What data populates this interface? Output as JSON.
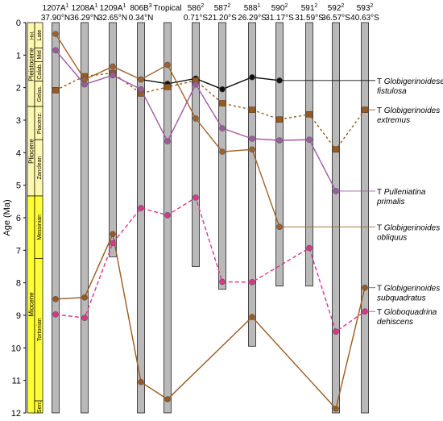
{
  "chart_data": {
    "type": "line",
    "xlabel": "",
    "ylabel": "Age (Ma)",
    "ylim": [
      0,
      12
    ],
    "yticks": [
      "0",
      "1",
      "2",
      "3",
      "4",
      "5",
      "6",
      "7",
      "8",
      "9",
      "10",
      "11",
      "12"
    ],
    "sites": [
      {
        "name": "1207A",
        "sup": "1",
        "lat": "37.90°N",
        "bottom": 12
      },
      {
        "name": "1208A",
        "sup": "1",
        "lat": "36.29°N",
        "bottom": 12
      },
      {
        "name": "1209A",
        "sup": "1",
        "lat": "32.65°N",
        "bottom": 7.2
      },
      {
        "name": "806B",
        "sup": "3",
        "lat": "0.34°N",
        "bottom": 12
      },
      {
        "name": "Tropical",
        "sup": "",
        "lat": "",
        "bottom": 12
      },
      {
        "name": "586",
        "sup": "2",
        "lat": "0.71°S",
        "bottom": 7.5
      },
      {
        "name": "587",
        "sup": "2",
        "lat": "21.20°S",
        "bottom": 8.2
      },
      {
        "name": "588",
        "sup": "1",
        "lat": "26.29°S",
        "bottom": 9.95
      },
      {
        "name": "590",
        "sup": "2",
        "lat": "31.17°S",
        "bottom": 8.1
      },
      {
        "name": "591",
        "sup": "2",
        "lat": "31.59°S",
        "bottom": 8.1
      },
      {
        "name": "592",
        "sup": "2",
        "lat": "36.57°S",
        "bottom": 12
      },
      {
        "name": "593",
        "sup": "2",
        "lat": "40.63°S",
        "bottom": 12
      }
    ],
    "stratigraphy": {
      "epochs": [
        {
          "label": "Pleistocene",
          "from": 0,
          "to": 2.58
        },
        {
          "label": "Pliocene",
          "from": 2.58,
          "to": 5.33
        },
        {
          "label": "Miocene",
          "from": 5.33,
          "to": 12
        }
      ],
      "stages": [
        {
          "label": "Late",
          "from": 0,
          "to": 0.78
        },
        {
          "label": "Mid",
          "from": 0.78,
          "to": 1.2
        },
        {
          "label": "Calab.",
          "from": 1.2,
          "to": 1.8
        },
        {
          "label": "Gelas.",
          "from": 1.8,
          "to": 2.58
        },
        {
          "label": "Piacenz.",
          "from": 2.58,
          "to": 3.6
        },
        {
          "label": "Zanclean",
          "from": 3.6,
          "to": 5.33
        },
        {
          "label": "Messinian",
          "from": 5.33,
          "to": 7.25
        },
        {
          "label": "Tortonian",
          "from": 7.25,
          "to": 11.63
        },
        {
          "label": "Serr.",
          "from": 11.63,
          "to": 12
        }
      ],
      "holocene_label": "Hol."
    },
    "series": [
      {
        "name": "T Globigerinoidesella fistulosa",
        "color": "#111111",
        "style": "solid",
        "marker": "circle",
        "points": [
          [
            3,
            1.75
          ],
          [
            4,
            1.88
          ],
          [
            5,
            1.72
          ],
          [
            6,
            2.05
          ],
          [
            7,
            1.68
          ],
          [
            8,
            1.78
          ]
        ],
        "label_y": 1.78
      },
      {
        "name": "T Globigerinoides extremus",
        "color": "#9a5a1e",
        "style": "dotted",
        "marker": "square",
        "points": [
          [
            0,
            2.08
          ],
          [
            1,
            1.65
          ],
          [
            2,
            1.55
          ],
          [
            3,
            2.18
          ],
          [
            4,
            1.98
          ],
          [
            5,
            1.78
          ],
          [
            6,
            2.48
          ],
          [
            7,
            2.68
          ],
          [
            8,
            2.98
          ],
          [
            9,
            2.82
          ],
          [
            10,
            3.9
          ],
          [
            11,
            2.68
          ]
        ],
        "label_y": 2.68
      },
      {
        "name": "T Pulleniatina primalis",
        "color": "#9e5aa2",
        "style": "solid",
        "marker": "circle",
        "points": [
          [
            0,
            0.85
          ],
          [
            1,
            1.9
          ],
          [
            2,
            1.62
          ],
          [
            3,
            2.05
          ],
          [
            4,
            3.65
          ],
          [
            5,
            1.9
          ],
          [
            6,
            3.25
          ],
          [
            7,
            3.57
          ],
          [
            8,
            3.62
          ],
          [
            9,
            3.6
          ],
          [
            10,
            5.18
          ]
        ],
        "label_y": 5.18
      },
      {
        "name": "T Globigerinoides obliquus",
        "color": "#a0622a",
        "style": "solid",
        "marker": "circle",
        "points": [
          [
            0,
            0.35
          ],
          [
            1,
            1.75
          ],
          [
            2,
            1.35
          ],
          [
            3,
            1.75
          ],
          [
            4,
            1.3
          ],
          [
            5,
            2.95
          ],
          [
            6,
            3.97
          ],
          [
            7,
            3.9
          ],
          [
            8,
            6.28
          ]
        ],
        "label_y": 6.28
      },
      {
        "name": "T Globigerinoides subquadratus",
        "color": "#9a5a1e",
        "style": "solid",
        "marker": "circle",
        "points": [
          [
            0,
            8.5
          ],
          [
            1,
            8.45
          ],
          [
            2,
            6.5
          ],
          [
            3,
            11.05
          ],
          [
            4,
            11.58
          ],
          [
            7,
            9.05
          ],
          [
            10,
            11.87
          ],
          [
            11,
            8.15
          ]
        ],
        "label_y": 8.15
      },
      {
        "name": "T Globoquadrina dehiscens",
        "color": "#e0338a",
        "style": "dashed",
        "marker": "circle",
        "points": [
          [
            0,
            8.97
          ],
          [
            1,
            9.08
          ],
          [
            2,
            6.78
          ],
          [
            3,
            5.7
          ],
          [
            4,
            5.92
          ],
          [
            5,
            5.38
          ],
          [
            6,
            7.97
          ],
          [
            7,
            7.98
          ],
          [
            9,
            6.93
          ],
          [
            10,
            9.5
          ],
          [
            11,
            8.88
          ]
        ],
        "label_y": 8.88
      }
    ]
  }
}
